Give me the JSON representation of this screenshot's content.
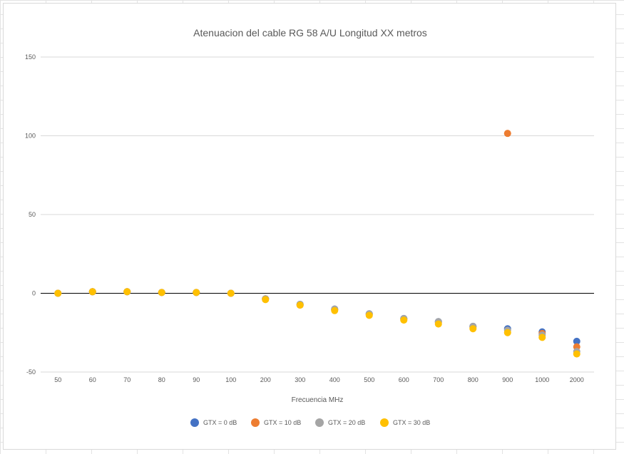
{
  "chart_data": {
    "type": "scatter",
    "title": "Atenuacion del cable RG 58 A/U Longitud XX metros",
    "xlabel": "Frecuencia MHz",
    "ylabel": "",
    "categories": [
      "50",
      "60",
      "70",
      "80",
      "90",
      "100",
      "200",
      "300",
      "400",
      "500",
      "600",
      "700",
      "800",
      "900",
      "1000",
      "2000"
    ],
    "ylim": [
      -50,
      150
    ],
    "yticks": [
      150,
      100,
      50,
      0,
      -50
    ],
    "grid": true,
    "legend_position": "bottom",
    "series": [
      {
        "name": "GTX = 0 dB",
        "color": "#4472C4",
        "values": [
          0,
          1,
          1,
          0.5,
          0.5,
          0,
          -3.5,
          -7,
          -10,
          -13,
          -16,
          -18,
          -21,
          -22.5,
          -24.5,
          -30.5
        ]
      },
      {
        "name": "GTX = 10 dB",
        "color": "#ED7D31",
        "values": [
          0,
          1,
          1,
          0.5,
          0.5,
          0,
          -3.5,
          -7.5,
          -10.5,
          -13.5,
          -16.5,
          -18.5,
          -21.5,
          101.5,
          -25.5,
          -34
        ]
      },
      {
        "name": "GTX = 20 dB",
        "color": "#A5A5A5",
        "values": [
          0,
          1,
          1,
          0.5,
          0.5,
          0,
          -3.5,
          -7,
          -10,
          -13,
          -16,
          -18,
          -21,
          -23.5,
          -26.5,
          -37
        ]
      },
      {
        "name": "GTX = 30 dB",
        "color": "#FFC000",
        "values": [
          0,
          1,
          1,
          0.5,
          0.5,
          0,
          -4,
          -7.5,
          -11,
          -14,
          -17,
          -19.5,
          -22.5,
          -25,
          -28,
          -38.5
        ]
      }
    ]
  }
}
